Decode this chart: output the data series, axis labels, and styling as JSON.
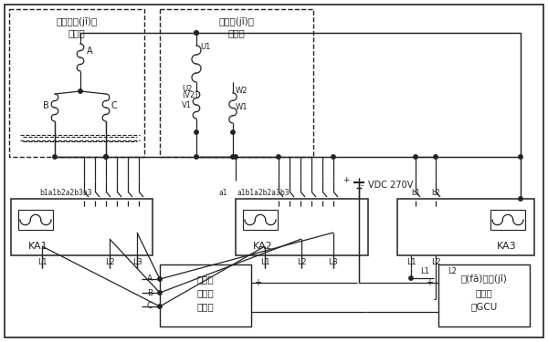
{
  "bg_color": "#ffffff",
  "line_color": "#222222",
  "box1_label_line1": "副勵磁機(jī)定",
  "box1_label_line2": "子繞組",
  "box2_label_line1": "勵磁機(jī)定",
  "box2_label_line2": "子繞組",
  "ka1_label": "KA1",
  "ka2_label": "KA2",
  "ka3_label": "KA3",
  "inv_line1": "三相橋",
  "inv_line2": "式雙向",
  "inv_line3": "逆變器",
  "gcu_line1": "發(fā)電機(jī)",
  "gcu_line2": "控制單",
  "gcu_line3": "元GCU",
  "vdc_label": "VDC 270V",
  "label_A": "A",
  "label_B": "B",
  "label_C": "C",
  "label_U1": "U1",
  "label_U2": "U2",
  "label_V2": "(V2)",
  "label_V1": "V1",
  "label_W2": "W2",
  "label_W1": "W1",
  "label_b1a1": "b1a1b2a2b3a3",
  "label_a1b1": "a1b1a2b2a3b3",
  "label_a1": "a1",
  "label_b1": "b1",
  "label_b2": "b2",
  "label_L1": "L1",
  "label_L2": "L2",
  "label_L3": "L3",
  "label_plus": "+",
  "label_minus": "-"
}
